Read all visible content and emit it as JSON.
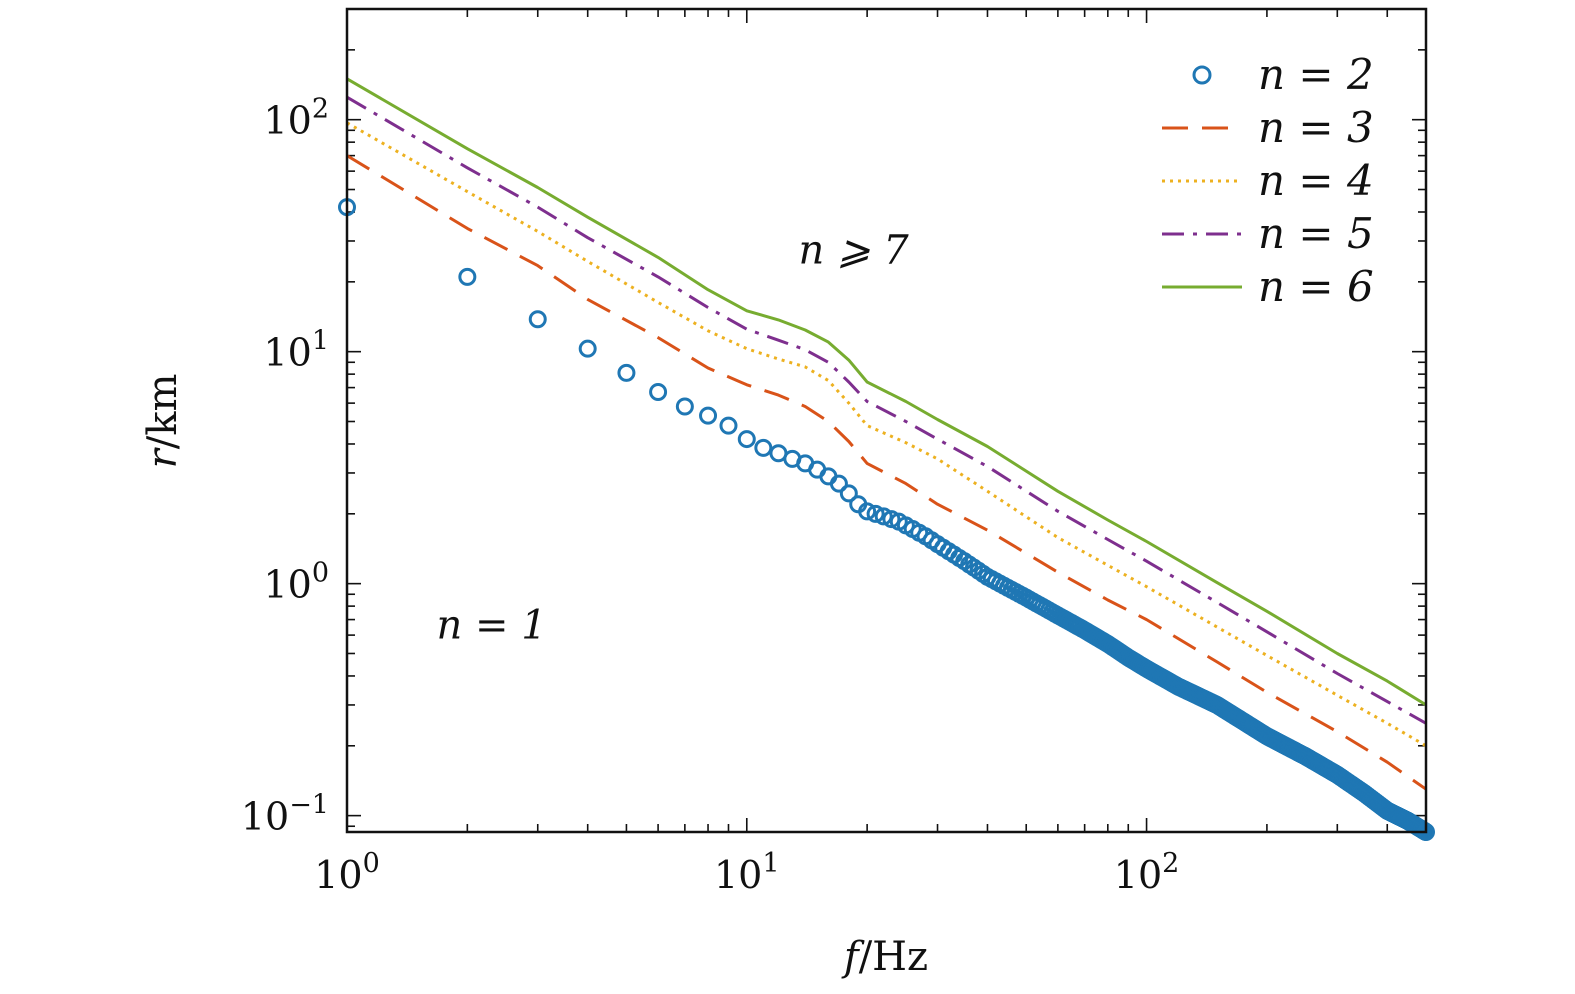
{
  "chart_data": {
    "type": "line",
    "title": "",
    "xlabel_var": "f",
    "xlabel_unit": "/Hz",
    "ylabel_var": "r",
    "ylabel_unit": "/km",
    "xscale": "log",
    "yscale": "log",
    "xlim": [
      1,
      500
    ],
    "ylim": [
      0.085,
      300
    ],
    "xticks": [
      {
        "base": "10",
        "exp": "0",
        "value": 1
      },
      {
        "base": "10",
        "exp": "1",
        "value": 10
      },
      {
        "base": "10",
        "exp": "2",
        "value": 100
      }
    ],
    "yticks": [
      {
        "base": "10",
        "exp": "−1",
        "value": 0.1
      },
      {
        "base": "10",
        "exp": "0",
        "value": 1
      },
      {
        "base": "10",
        "exp": "1",
        "value": 10
      },
      {
        "base": "10",
        "exp": "2",
        "value": 100
      }
    ],
    "legend_position": "top-right",
    "annotations": [
      {
        "text": "n = 1",
        "x": 2.3,
        "y": 0.58
      },
      {
        "text": "n ⩾ 7",
        "x": 18.5,
        "y": 24
      }
    ],
    "series": [
      {
        "name": "n = 2",
        "style": "circles",
        "color": "#1f77b4",
        "x": [
          1,
          2,
          3,
          4,
          5,
          6,
          7,
          8,
          9,
          10,
          11,
          12,
          13,
          14,
          15,
          16,
          17,
          18,
          19,
          20,
          22,
          24,
          26,
          28,
          30,
          35,
          40,
          50,
          60,
          70,
          80,
          90,
          100,
          120,
          150,
          200,
          250,
          300,
          350,
          400,
          450,
          500
        ],
        "y": [
          42,
          21,
          13.8,
          10.3,
          8.1,
          6.7,
          5.8,
          5.3,
          4.8,
          4.2,
          3.85,
          3.65,
          3.45,
          3.3,
          3.1,
          2.9,
          2.7,
          2.45,
          2.2,
          2.05,
          1.95,
          1.85,
          1.72,
          1.6,
          1.48,
          1.25,
          1.07,
          0.87,
          0.73,
          0.63,
          0.55,
          0.48,
          0.43,
          0.36,
          0.3,
          0.22,
          0.18,
          0.15,
          0.125,
          0.105,
          0.095,
          0.085
        ]
      },
      {
        "name": "n = 3",
        "style": "dashed",
        "color": "#d95319",
        "x": [
          1,
          2,
          3,
          4,
          6,
          8,
          10,
          12,
          14,
          16,
          18,
          20,
          25,
          30,
          40,
          60,
          80,
          100,
          150,
          200,
          300,
          400,
          500
        ],
        "y": [
          70,
          34,
          23.5,
          16.8,
          11.5,
          8.5,
          7.2,
          6.5,
          5.8,
          5,
          4.1,
          3.3,
          2.7,
          2.2,
          1.7,
          1.12,
          0.85,
          0.7,
          0.46,
          0.34,
          0.23,
          0.17,
          0.13
        ]
      },
      {
        "name": "n = 4",
        "style": "dotted",
        "color": "#edb120",
        "x": [
          1,
          2,
          3,
          4,
          6,
          8,
          10,
          12,
          14,
          16,
          18,
          20,
          25,
          30,
          40,
          60,
          80,
          100,
          150,
          200,
          300,
          400,
          500
        ],
        "y": [
          97,
          49,
          33,
          24.5,
          16.3,
          12.3,
          10.3,
          9.3,
          8.6,
          7.5,
          6,
          4.8,
          4.05,
          3.45,
          2.5,
          1.58,
          1.2,
          0.97,
          0.65,
          0.49,
          0.33,
          0.25,
          0.2
        ]
      },
      {
        "name": "n = 5",
        "style": "dashdot",
        "color": "#7e2f8e",
        "x": [
          1,
          2,
          3,
          4,
          6,
          8,
          10,
          12,
          14,
          16,
          18,
          20,
          25,
          30,
          40,
          60,
          80,
          100,
          150,
          200,
          300,
          400,
          500
        ],
        "y": [
          125,
          62,
          42,
          31,
          21,
          15.5,
          12.5,
          11.2,
          10.2,
          9,
          7.4,
          6.1,
          5,
          4.2,
          3.2,
          2.05,
          1.55,
          1.25,
          0.83,
          0.62,
          0.41,
          0.31,
          0.25
        ]
      },
      {
        "name": "n = 6",
        "style": "solid",
        "color": "#77ac30",
        "x": [
          1,
          2,
          3,
          4,
          6,
          8,
          10,
          12,
          14,
          16,
          18,
          20,
          25,
          30,
          40,
          60,
          80,
          100,
          150,
          200,
          300,
          400,
          500
        ],
        "y": [
          150,
          75,
          51,
          38,
          25.5,
          18.5,
          15,
          13.7,
          12.4,
          11,
          9.2,
          7.4,
          6.1,
          5.1,
          3.9,
          2.5,
          1.88,
          1.52,
          1.01,
          0.76,
          0.5,
          0.38,
          0.3
        ]
      }
    ]
  }
}
